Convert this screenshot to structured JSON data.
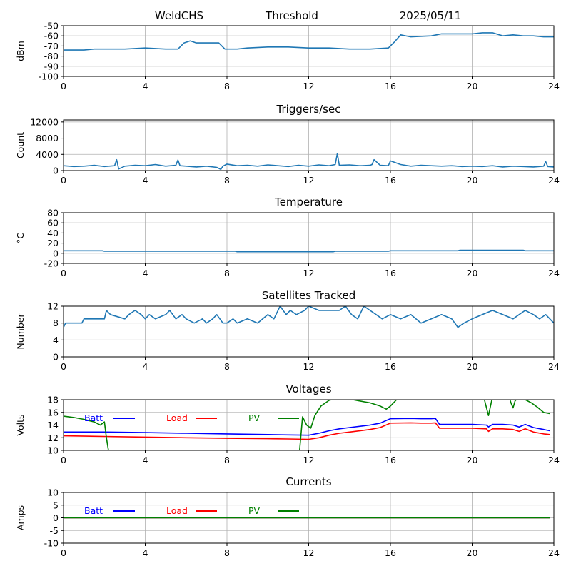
{
  "header": {
    "station": "WeldCHS",
    "mode": "Threshold",
    "date": "2025/05/11"
  },
  "chart_data": [
    {
      "type": "line",
      "title": "",
      "ylabel": "dBm",
      "xlim": [
        0,
        24
      ],
      "ylim": [
        -100,
        -50
      ],
      "xticks": [
        0,
        4,
        8,
        12,
        16,
        20,
        24
      ],
      "yticks": [
        -100,
        -90,
        -80,
        -70,
        -60,
        -50
      ],
      "grid": true,
      "series": [
        {
          "color": "#1f77b4",
          "x": [
            0,
            0.5,
            1,
            1.5,
            2,
            3,
            4,
            5,
            5.6,
            5.9,
            6.2,
            6.5,
            7,
            7.6,
            7.9,
            8.5,
            9,
            10,
            11,
            12,
            13,
            14,
            15,
            15.9,
            16.2,
            16.5,
            17,
            18,
            18.5,
            19,
            20,
            20.5,
            21,
            21.5,
            22,
            22.5,
            23,
            23.5,
            24
          ],
          "y": [
            -74,
            -74,
            -74,
            -73,
            -73,
            -73,
            -72,
            -73,
            -73,
            -67,
            -65,
            -67,
            -67,
            -67,
            -73,
            -73,
            -72,
            -71,
            -71,
            -72,
            -72,
            -73,
            -73,
            -72,
            -66,
            -59,
            -61,
            -60,
            -58,
            -58,
            -58,
            -57,
            -57,
            -60,
            -59,
            -60,
            -60,
            -61,
            -61
          ]
        }
      ]
    },
    {
      "type": "line",
      "title": "Triggers/sec",
      "ylabel": "Count",
      "xlim": [
        0,
        24
      ],
      "ylim": [
        0,
        12500
      ],
      "xticks": [
        0,
        4,
        8,
        12,
        16,
        20,
        24
      ],
      "yticks": [
        0,
        4000,
        8000,
        12000
      ],
      "grid": true,
      "series": [
        {
          "color": "#1f77b4",
          "x": [
            0,
            0.5,
            1,
            1.5,
            2,
            2.5,
            2.6,
            2.7,
            3,
            3.5,
            4,
            4.5,
            5,
            5.5,
            5.6,
            5.7,
            6,
            6.5,
            7,
            7.5,
            7.7,
            7.8,
            8,
            8.5,
            9,
            9.5,
            10,
            10.5,
            11,
            11.5,
            12,
            12.5,
            13,
            13.3,
            13.4,
            13.5,
            14,
            14.5,
            15,
            15.1,
            15.2,
            15.5,
            15.9,
            16,
            16.5,
            17,
            17.5,
            18,
            18.5,
            19,
            19.5,
            20,
            20.5,
            21,
            21.5,
            22,
            22.5,
            23,
            23.5,
            23.6,
            23.7,
            24
          ],
          "y": [
            1200,
            1000,
            1100,
            1300,
            1000,
            1200,
            2700,
            400,
            1100,
            1300,
            1200,
            1500,
            1100,
            1300,
            2600,
            1200,
            1100,
            900,
            1100,
            800,
            300,
            1100,
            1600,
            1200,
            1300,
            1100,
            1400,
            1200,
            1000,
            1300,
            1100,
            1400,
            1200,
            1500,
            4200,
            1300,
            1400,
            1200,
            1300,
            1500,
            2700,
            1300,
            1200,
            2400,
            1500,
            1100,
            1300,
            1200,
            1100,
            1200,
            1000,
            1100,
            1000,
            1200,
            900,
            1100,
            1000,
            900,
            1100,
            2200,
            1000,
            900
          ]
        }
      ]
    },
    {
      "type": "line",
      "title": "Temperature",
      "ylabel": "°C",
      "xlim": [
        0,
        24
      ],
      "ylim": [
        -20,
        80
      ],
      "xticks": [
        0,
        4,
        8,
        12,
        16,
        20,
        24
      ],
      "yticks": [
        -20,
        0,
        20,
        40,
        60,
        80
      ],
      "grid": true,
      "series": [
        {
          "color": "#1f77b4",
          "x": [
            0,
            1.9,
            2,
            8.4,
            8.5,
            13.2,
            13.3,
            15.9,
            16,
            19.3,
            19.4,
            22.5,
            22.6,
            24
          ],
          "y": [
            5,
            5,
            4,
            4,
            3,
            3,
            4,
            4,
            5,
            5,
            6,
            6,
            5,
            5
          ]
        }
      ]
    },
    {
      "type": "line",
      "title": "Satellites Tracked",
      "ylabel": "Number",
      "xlim": [
        0,
        24
      ],
      "ylim": [
        0,
        12
      ],
      "xticks": [
        0,
        4,
        8,
        12,
        16,
        20,
        24
      ],
      "yticks": [
        0,
        4,
        8,
        12
      ],
      "grid": true,
      "series": [
        {
          "color": "#1f77b4",
          "x": [
            0,
            0.1,
            0.2,
            0.3,
            0.9,
            1.0,
            2.0,
            2.1,
            2.3,
            3.0,
            3.2,
            3.5,
            3.8,
            4.0,
            4.2,
            4.5,
            5.0,
            5.2,
            5.5,
            5.8,
            6.0,
            6.4,
            6.8,
            7.0,
            7.3,
            7.5,
            7.8,
            8.0,
            8.3,
            8.5,
            9.0,
            9.5,
            10.0,
            10.3,
            10.6,
            10.9,
            11.1,
            11.4,
            11.8,
            12.0,
            12.5,
            13.0,
            13.5,
            13.8,
            14.1,
            14.4,
            14.7,
            15.0,
            15.3,
            15.6,
            16.0,
            16.5,
            17.0,
            17.5,
            18.0,
            18.5,
            19.0,
            19.3,
            19.6,
            20.0,
            20.5,
            21.0,
            21.5,
            22.0,
            22.3,
            22.6,
            23.0,
            23.3,
            23.6,
            24.0
          ],
          "y": [
            7,
            8,
            8,
            8,
            8,
            9,
            9,
            11,
            10,
            9,
            10,
            11,
            10,
            9,
            10,
            9,
            10,
            11,
            9,
            10,
            9,
            8,
            9,
            8,
            9,
            10,
            8,
            8,
            9,
            8,
            9,
            8,
            10,
            9,
            12,
            10,
            11,
            10,
            11,
            12,
            11,
            11,
            11,
            12,
            10,
            9,
            12,
            11,
            10,
            9,
            10,
            9,
            10,
            8,
            9,
            10,
            9,
            7,
            8,
            9,
            10,
            11,
            10,
            9,
            10,
            11,
            10,
            9,
            10,
            8
          ]
        }
      ]
    },
    {
      "type": "line",
      "title": "Voltages",
      "ylabel": "Volts",
      "xlim": [
        0,
        24
      ],
      "ylim": [
        10,
        18
      ],
      "xticks": [
        0,
        4,
        8,
        12,
        16,
        20,
        24
      ],
      "yticks": [
        10,
        12,
        14,
        16,
        18
      ],
      "grid": true,
      "legend": "top-left",
      "series": [
        {
          "name": "Batt",
          "color": "#0000ff",
          "x": [
            0,
            2,
            4,
            6,
            8,
            10,
            11,
            12,
            12.5,
            13,
            13.5,
            14,
            15,
            15.5,
            16,
            17,
            17.5,
            18,
            18.2,
            18.4,
            19,
            20,
            20.7,
            20.8,
            21,
            21.5,
            22,
            22.3,
            22.6,
            23,
            23.5,
            23.8
          ],
          "y": [
            12.9,
            12.9,
            12.8,
            12.7,
            12.6,
            12.5,
            12.45,
            12.4,
            12.7,
            13.1,
            13.4,
            13.6,
            14.0,
            14.3,
            15.0,
            15.05,
            15.0,
            15.0,
            15.05,
            14.1,
            14.1,
            14.1,
            14.0,
            13.7,
            14.1,
            14.1,
            14.0,
            13.7,
            14.1,
            13.6,
            13.3,
            13.1
          ]
        },
        {
          "name": "Load",
          "color": "#ff0000",
          "x": [
            0,
            2,
            4,
            6,
            8,
            10,
            11,
            12,
            12.5,
            13,
            13.5,
            14,
            15,
            15.5,
            16,
            17,
            17.5,
            18,
            18.2,
            18.4,
            19,
            20,
            20.7,
            20.8,
            21,
            21.5,
            22,
            22.3,
            22.6,
            23,
            23.5,
            23.8
          ],
          "y": [
            12.3,
            12.2,
            12.1,
            12.0,
            11.9,
            11.85,
            11.8,
            11.75,
            12.0,
            12.4,
            12.7,
            12.9,
            13.3,
            13.6,
            14.3,
            14.35,
            14.3,
            14.3,
            14.35,
            13.5,
            13.5,
            13.5,
            13.4,
            13.0,
            13.4,
            13.4,
            13.3,
            13.0,
            13.4,
            12.9,
            12.6,
            12.5
          ]
        },
        {
          "name": "PV",
          "color": "#008000",
          "segments": [
            {
              "x": [
                0,
                0.5,
                1,
                1.5,
                1.8,
                2.0,
                2.1,
                2.3
              ],
              "y": [
                15.4,
                15.2,
                14.9,
                14.5,
                14.0,
                14.5,
                12.0,
                8.0
              ]
            },
            {
              "x": [
                11.5,
                11.7,
                11.9,
                12.1,
                12.3,
                12.6,
                13.0,
                13.5,
                14.0,
                14.5,
                15.0,
                15.5,
                15.8,
                16.0,
                16.3,
                16.5
              ],
              "y": [
                8.0,
                15.3,
                14.0,
                13.5,
                15.5,
                17.0,
                17.9,
                18.3,
                18.1,
                17.8,
                17.5,
                17.0,
                16.5,
                17.0,
                18.0,
                18.5
              ]
            },
            {
              "x": [
                20.4,
                20.6,
                20.8,
                21.0
              ],
              "y": [
                18.5,
                18.0,
                15.5,
                18.5
              ]
            },
            {
              "x": [
                21.8,
                21.9,
                22.0,
                22.1,
                22.3,
                22.6,
                22.9,
                23.2,
                23.5,
                23.8
              ],
              "y": [
                18.5,
                17.5,
                16.7,
                17.8,
                18.5,
                18.0,
                17.5,
                16.8,
                16.0,
                15.8
              ]
            }
          ]
        }
      ]
    },
    {
      "type": "line",
      "title": "Currents",
      "ylabel": "Amps",
      "xlim": [
        0,
        24
      ],
      "ylim": [
        -10,
        10
      ],
      "xticks": [
        0,
        4,
        8,
        12,
        16,
        20,
        24
      ],
      "yticks": [
        -10,
        -5,
        0,
        5,
        10
      ],
      "grid": true,
      "legend": "top-left",
      "series": [
        {
          "name": "Batt",
          "color": "#0000ff",
          "x": [
            0,
            23.8
          ],
          "y": [
            0,
            0
          ]
        },
        {
          "name": "Load",
          "color": "#ff0000",
          "x": [
            0,
            23.8
          ],
          "y": [
            0,
            0
          ]
        },
        {
          "name": "PV",
          "color": "#008000",
          "x": [
            0,
            23.8
          ],
          "y": [
            0,
            0
          ]
        }
      ]
    }
  ]
}
